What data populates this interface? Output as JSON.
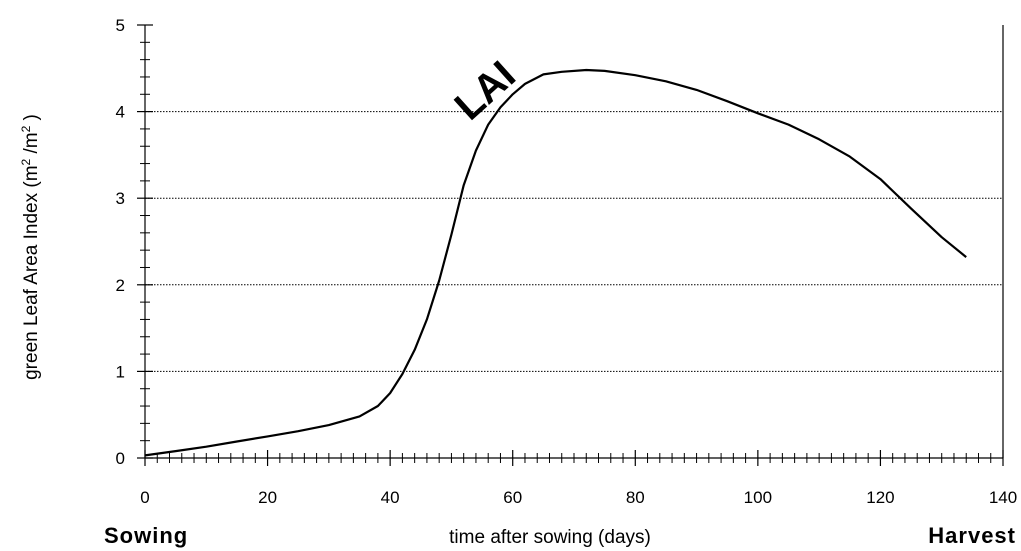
{
  "chart_data": {
    "type": "line",
    "title": "",
    "xlabel": "time after sowing (days)",
    "ylabel": "green Leaf Area Index (m",
    "ylabel_parts": {
      "sup1": "2",
      "mid": " /m",
      "sup2": "2",
      "end": " )"
    },
    "xlim": [
      0,
      140
    ],
    "ylim": [
      0,
      5
    ],
    "x_ticks": [
      0,
      20,
      40,
      60,
      80,
      100,
      120,
      140
    ],
    "y_ticks": [
      0,
      1,
      2,
      3,
      4,
      5
    ],
    "x_minor_tick_step": 2,
    "y_minor_tick_step": 0.2,
    "grid": "horizontal dotted",
    "annotation": "LAI",
    "start_label": "Sowing",
    "end_label": "Harvest",
    "series": [
      {
        "name": "",
        "x": [
          0,
          5,
          10,
          15,
          20,
          25,
          30,
          35,
          38,
          40,
          42,
          44,
          46,
          48,
          50,
          52,
          54,
          56,
          58,
          60,
          62,
          65,
          68,
          72,
          75,
          80,
          85,
          90,
          95,
          100,
          105,
          110,
          115,
          120,
          125,
          130,
          134
        ],
        "y": [
          0.03,
          0.08,
          0.13,
          0.19,
          0.25,
          0.31,
          0.38,
          0.48,
          0.6,
          0.75,
          0.97,
          1.25,
          1.6,
          2.05,
          2.58,
          3.15,
          3.55,
          3.85,
          4.05,
          4.2,
          4.32,
          4.43,
          4.46,
          4.48,
          4.47,
          4.42,
          4.35,
          4.25,
          4.12,
          3.98,
          3.85,
          3.68,
          3.48,
          3.22,
          2.88,
          2.55,
          2.32
        ]
      }
    ]
  }
}
